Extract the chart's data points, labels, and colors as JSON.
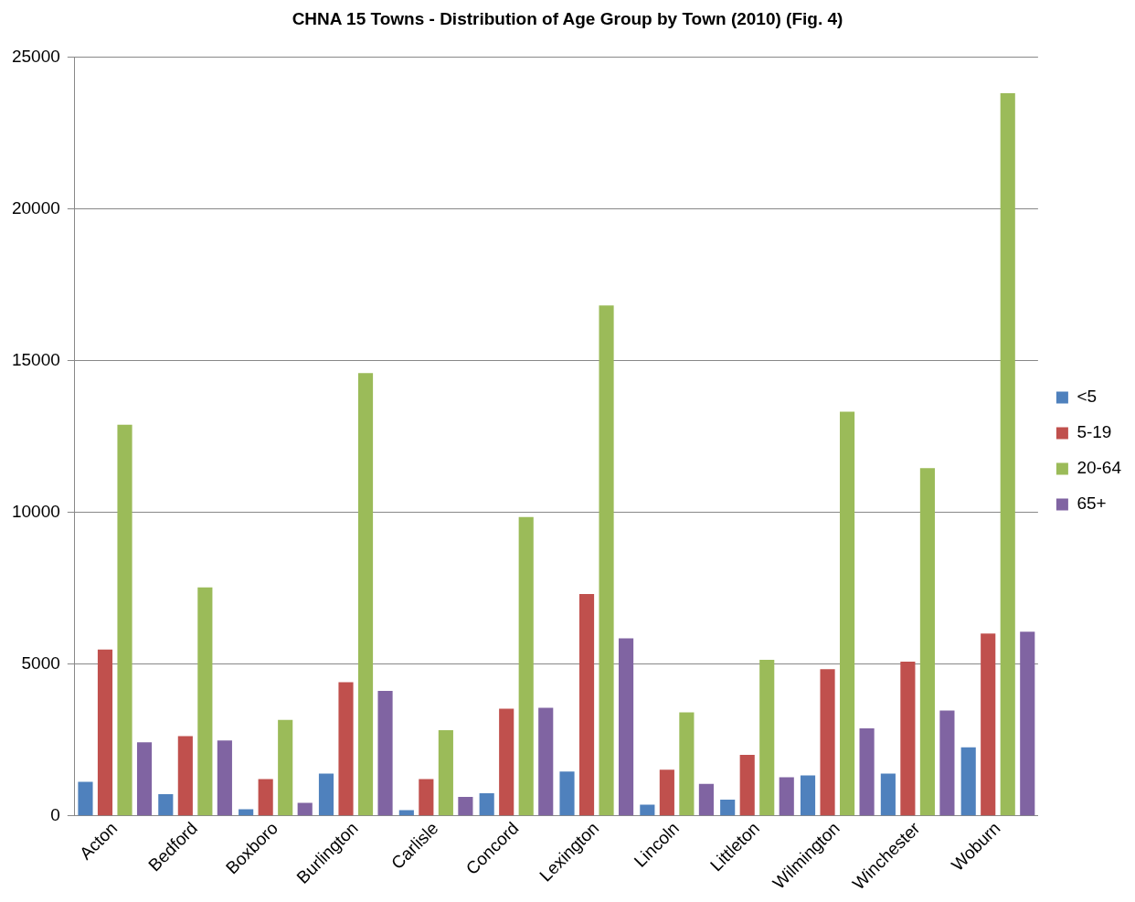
{
  "chart_data": {
    "type": "bar",
    "title": "CHNA 15 Towns - Distribution of Age Group by Town (2010) (Fig. 4)",
    "categories": [
      "Acton",
      "Bedford",
      "Boxboro",
      "Burlington",
      "Carlisle",
      "Concord",
      "Lexington",
      "Lincoln",
      "Littleton",
      "Wilmington",
      "Winchester",
      "Woburn"
    ],
    "series": [
      {
        "name": "<5",
        "color": "#4f81bd",
        "values": [
          1120,
          710,
          220,
          1390,
          190,
          740,
          1460,
          370,
          530,
          1330,
          1390,
          2260
        ]
      },
      {
        "name": "5-19",
        "color": "#c0504d",
        "values": [
          5480,
          2630,
          1210,
          4400,
          1210,
          3530,
          7310,
          1520,
          2010,
          4830,
          5080,
          6010
        ]
      },
      {
        "name": "20-64",
        "color": "#9bbb59",
        "values": [
          12890,
          7530,
          3160,
          14590,
          2820,
          9850,
          16820,
          3410,
          5140,
          13320,
          11460,
          23820
        ]
      },
      {
        "name": "65+",
        "color": "#8064a2",
        "values": [
          2420,
          2480,
          430,
          4120,
          620,
          3560,
          5850,
          1050,
          1270,
          2880,
          3470,
          6070
        ]
      }
    ],
    "ylim": [
      0,
      25000
    ],
    "yticks": [
      0,
      5000,
      10000,
      15000,
      20000,
      25000
    ],
    "grid": "y",
    "legend": "right"
  }
}
